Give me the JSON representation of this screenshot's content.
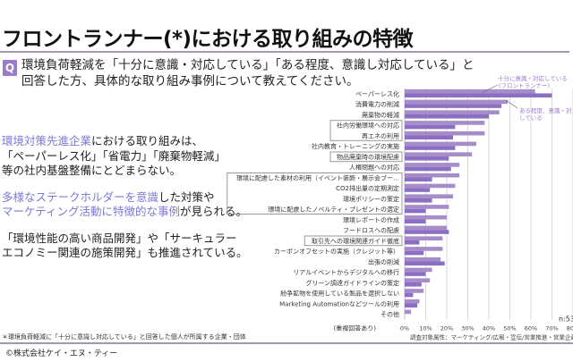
{
  "header": {
    "title": "フロントランナー(*)における取り組みの特徴",
    "q_badge": "Q",
    "question_line1": "環境負荷軽減を「十分に意識・対応している」「ある程度、意識し対応している」と",
    "question_line2": "回答した方、具体的な取り組み事例について教えてください。"
  },
  "findings": [
    {
      "parts": [
        {
          "text": "環境対策先進企業",
          "hl": true
        },
        {
          "text": "における取り組みは、",
          "hl": false
        }
      ]
    },
    {
      "parts": [
        {
          "text": "「ペーパーレス化」「省電力」「廃棄物軽減」",
          "hl": false
        }
      ]
    },
    {
      "parts": [
        {
          "text": "等の社内基盤整備にとどまらない。",
          "hl": false
        }
      ]
    },
    {
      "gap": true
    },
    {
      "parts": [
        {
          "text": "多様なステークホルダーを意識",
          "hl": true
        },
        {
          "text": "した対策や",
          "hl": false
        }
      ]
    },
    {
      "parts": [
        {
          "text": "マーケティング活動に特徴的な事例",
          "hl": true
        },
        {
          "text": "が見られる。",
          "hl": false
        }
      ]
    },
    {
      "gap": true
    },
    {
      "parts": [
        {
          "text": "「環境性能の高い商品開発」や「サーキュラー",
          "hl": false
        }
      ]
    },
    {
      "parts": [
        {
          "text": "エコノミー関連の施策開発」も推進されている。",
          "hl": false
        }
      ]
    }
  ],
  "footer": {
    "footnote": "＊環境負荷軽減に「十分に意識し対応している」と回答した個人が所属する企業・団体",
    "copyright": "©株式会社ケイ・エヌ・ティー"
  },
  "colors": {
    "accent": "#9a7cc8",
    "highlight_text": "#7b79d6",
    "series_frontrunner": "#a68cc8",
    "series_moderate": "#8b6fc2",
    "gridline": "#d9d9d9",
    "label_box": "#7f7f7f"
  },
  "chart_data": {
    "type": "bar",
    "orientation": "horizontal",
    "title": "",
    "xlabel": "(重複回答あり)",
    "ylabel": "",
    "xlim": [
      0,
      80
    ],
    "x_ticks": [
      "0%",
      "10%",
      "20%",
      "30%",
      "40%",
      "50%",
      "60%",
      "70%",
      "80%"
    ],
    "grid": true,
    "sample_note": "n:53",
    "respondent_note": "調査対象属性：マーケティング/広報・宣伝/営業推進・営業企画",
    "categories": [
      "ペーパーレス化",
      "消費電力の削減",
      "廃棄物の軽減",
      "社内労働環境への対応",
      "再エネの利用",
      "社内教育・トレーニングの実施",
      "物品廃棄時の環境配慮",
      "人権問題への対応",
      "環境に配慮した素材の利用（イベント装飾・展示会ブー…",
      "CO2排出量の定期測定",
      "環境ポリシーの策定",
      "環境に配慮したノベルティ・プレゼントの選定",
      "環境レポートの作成",
      "フードロスへの配慮",
      "取引先への環境関連ガイド徹底",
      "カーボンオフセットの実施（クレジット等）",
      "出張の削減",
      "リアルイベントからデジタルへの移行",
      "グリーン調達ガイドラインの策定",
      "紛争鉱物を使用している製品を選択しない",
      "Marketing Automationなどツールの利用",
      "その他"
    ],
    "boxed_groups": [
      [
        3,
        4
      ],
      [
        6,
        6
      ],
      [
        8,
        11
      ],
      [
        14,
        14
      ]
    ],
    "series": [
      {
        "name": "十分に意識・対応している(フロントランナー)",
        "values": [
          62,
          49,
          45,
          38,
          38,
          34,
          32,
          26,
          26,
          24,
          23,
          21,
          20,
          20,
          18,
          18,
          17,
          13,
          12,
          9,
          7,
          3
        ]
      },
      {
        "name": "ある程度、意識・対応している",
        "values": [
          70,
          46,
          40,
          24,
          23,
          24,
          21,
          22,
          13,
          12,
          13,
          10,
          10,
          21,
          7,
          9,
          19,
          10,
          8,
          4,
          6,
          0
        ]
      }
    ],
    "annotations": [
      {
        "text_line1": "十分に意識・対応している",
        "text_line2": "(フロントランナー)",
        "series": 0
      },
      {
        "text_line1": "ある程度、意識・対",
        "text_line2": "している",
        "series": 1
      }
    ]
  }
}
